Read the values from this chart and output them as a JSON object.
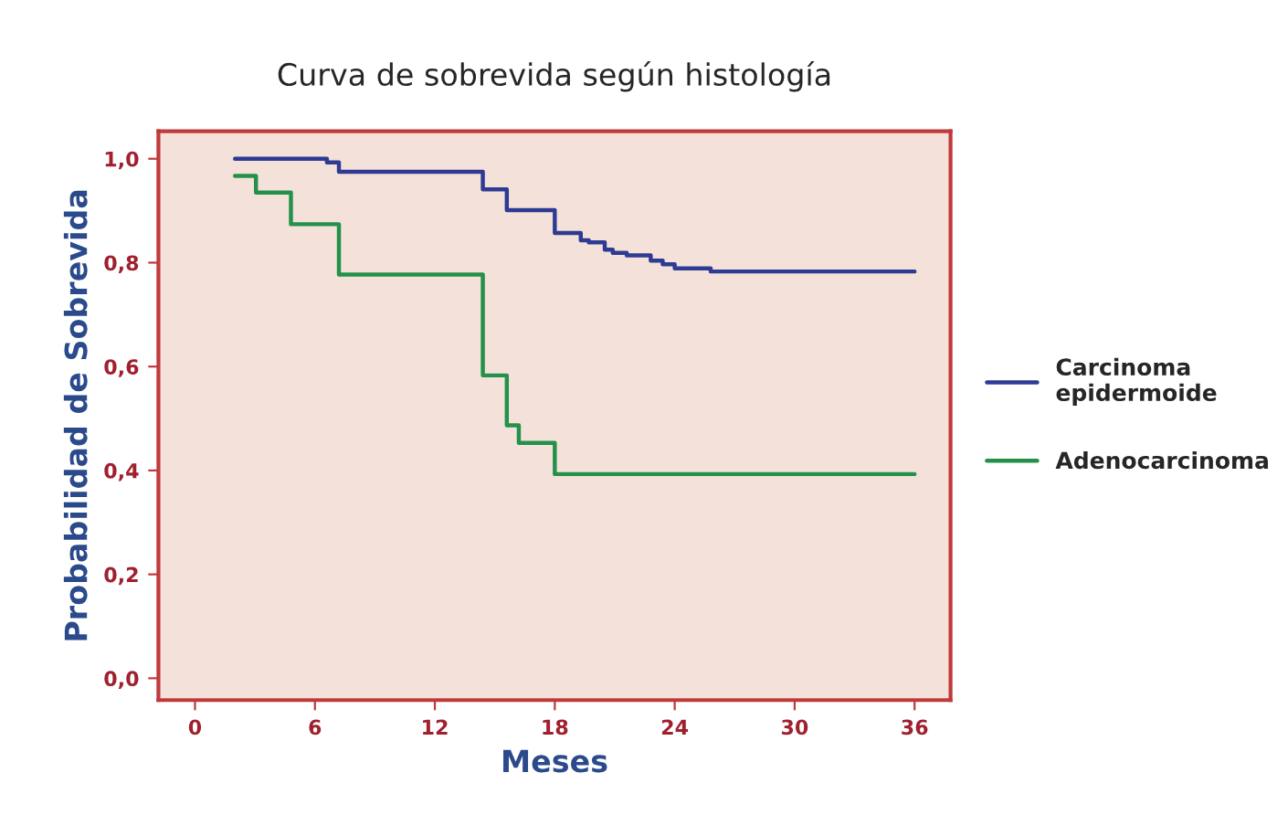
{
  "chart_data": {
    "type": "step",
    "title": "Curva de sobrevida según histología",
    "xlabel": "Meses",
    "ylabel": "Probabilidad de Sobrevida",
    "series": [
      {
        "name": "Carcinoma epidermoide",
        "color": "#2e3a93",
        "x": [
          2.0,
          6.6,
          7.2,
          14.4,
          15.6,
          18.0,
          19.3,
          19.7,
          20.5,
          20.9,
          21.6,
          22.8,
          23.4,
          24.0,
          25.8,
          36.0
        ],
        "values": [
          1.0,
          0.993,
          0.975,
          0.941,
          0.901,
          0.857,
          0.843,
          0.839,
          0.825,
          0.819,
          0.814,
          0.804,
          0.797,
          0.789,
          0.783,
          0.783
        ]
      },
      {
        "name": "Adenocarcinoma",
        "color": "#23914a",
        "x": [
          2.0,
          3.05,
          4.8,
          7.2,
          14.4,
          15.6,
          16.2,
          18.0,
          36.0
        ],
        "values": [
          0.967,
          0.935,
          0.874,
          0.777,
          0.583,
          0.487,
          0.453,
          0.393,
          0.393
        ]
      }
    ],
    "xlim": [
      -1.83,
      37.8
    ],
    "ylim": [
      -0.042,
      1.053
    ],
    "xticks": [
      0,
      6,
      12,
      18,
      24,
      30,
      36
    ],
    "yticks": [
      {
        "value": 0,
        "label": "0,0"
      },
      {
        "value": 0.2,
        "label": "0,2"
      },
      {
        "value": 0.4,
        "label": "0,4"
      },
      {
        "value": 0.6,
        "label": "0,6"
      },
      {
        "value": 0.8,
        "label": "0,8"
      },
      {
        "value": 1.0,
        "label": "1,0"
      }
    ],
    "grid": false,
    "legend": "right"
  }
}
